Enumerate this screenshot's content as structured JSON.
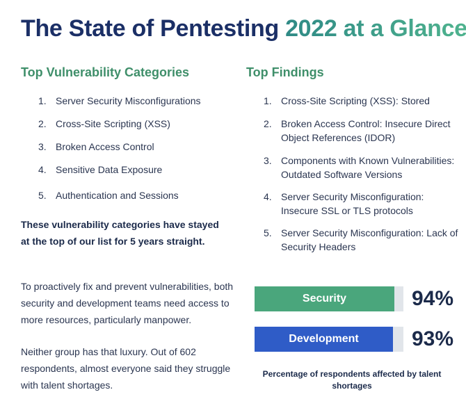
{
  "title": {
    "part1": "The State of Pentesting ",
    "part2": "2022 at a Glance",
    "colors": [
      "#1b2f66",
      "#2f8a86",
      "#4fb38e"
    ]
  },
  "left": {
    "heading": "Top Vulnerability Categories",
    "items": [
      {
        "num": "1.",
        "text": "Server Security Misconfigurations"
      },
      {
        "num": "2.",
        "text": "Cross-Site Scripting (XSS)"
      },
      {
        "num": "3.",
        "text": "Broken Access Control"
      },
      {
        "num": "4.",
        "text": "Sensitive Data Exposure"
      },
      {
        "num": "5.",
        "text": "Authentication and Sessions"
      }
    ],
    "note": "These vulnerability categories have stayed at the top of our list for 5 years straight.",
    "para1": "To proactively fix and prevent vulnerabilities, both security and development teams need access to more resources, particularly manpower.",
    "para2": "Neither group has that luxury. Out of 602 respondents, almost everyone said they struggle with talent shortages."
  },
  "right": {
    "heading": "Top Findings",
    "items": [
      {
        "num": "1.",
        "text": "Cross-Site Scripting (XSS): Stored"
      },
      {
        "num": "2.",
        "text": "Broken Access Control: Insecure Direct Object References (IDOR)"
      },
      {
        "num": "3.",
        "text": "Components with Known Vulnerabilities: Outdated Software Versions"
      },
      {
        "num": "4.",
        "text": "Server Security Misconfiguration: Insecure SSL or TLS protocols"
      },
      {
        "num": "5.",
        "text": "Server Security Misconfiguration: Lack of Security Headers"
      }
    ]
  },
  "colors": {
    "heading_green": "#3f8f6a",
    "security_bar": "#4aa67c",
    "development_bar": "#2f5cc7",
    "track": "#e1e5ea"
  },
  "chart_data": {
    "type": "bar",
    "orientation": "horizontal",
    "categories": [
      "Security",
      "Development"
    ],
    "values": [
      94,
      93
    ],
    "value_labels": [
      "94%",
      "93%"
    ],
    "caption": "Percentage of respondents affected by talent shortages",
    "xlim": [
      0,
      100
    ]
  }
}
